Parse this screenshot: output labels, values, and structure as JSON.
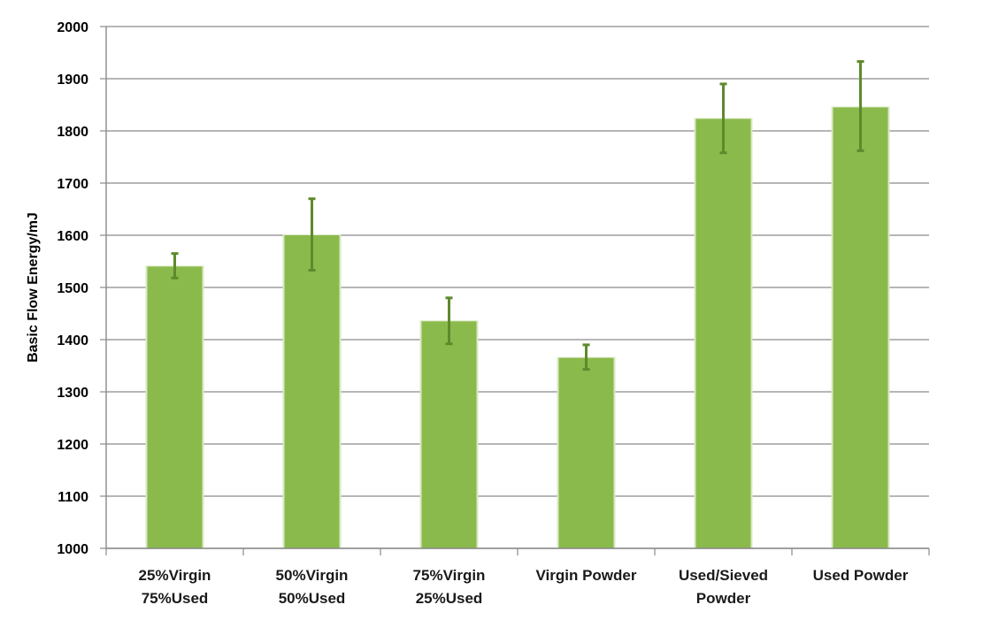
{
  "chart_data": {
    "type": "bar",
    "title": "",
    "xlabel": "",
    "ylabel": "Basic Flow Energy/mJ",
    "ylim": [
      1000,
      2000
    ],
    "yticks": [
      1000,
      1100,
      1200,
      1300,
      1400,
      1500,
      1600,
      1700,
      1800,
      1900,
      2000
    ],
    "grid": true,
    "legend": "none",
    "categories": [
      [
        "25%Virgin",
        "75%Used"
      ],
      [
        "50%Virgin",
        "50%Used"
      ],
      [
        "75%Virgin",
        "25%Used"
      ],
      [
        "Virgin Powder"
      ],
      [
        "Used/Sieved",
        "Powder"
      ],
      [
        "Used Powder"
      ]
    ],
    "values": [
      1540,
      1600,
      1435,
      1365,
      1823,
      1845
    ],
    "error_low": [
      1518,
      1533,
      1392,
      1343,
      1758,
      1762
    ],
    "error_high": [
      1565,
      1670,
      1480,
      1390,
      1890,
      1933
    ],
    "colors": {
      "bar": "#8bba4c",
      "bar_edge": "#d9e8c4",
      "error_bar": "#5e8a2c",
      "grid": "#8a8a8a",
      "axis": "#8a8a8a"
    }
  }
}
